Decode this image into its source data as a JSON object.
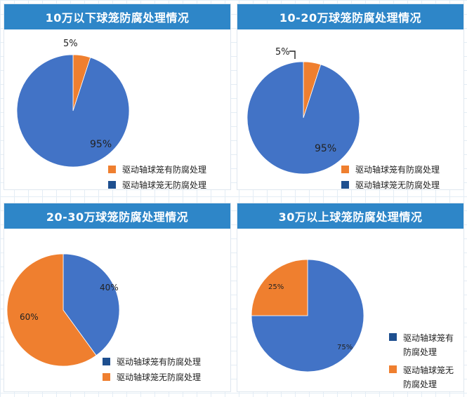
{
  "colors": {
    "orange": "#ef7f2f",
    "blue": "#4273c6",
    "header": "#2e86c8",
    "dark_blue": "#1e4f8f"
  },
  "chart_data": [
    {
      "type": "pie",
      "title": "10万以下球笼防腐处理情况",
      "slices": [
        {
          "label": "驱动轴球笼有防腐处理",
          "value": 5,
          "display": "5%",
          "color": "#ef7f2f"
        },
        {
          "label": "驱动轴球笼无防腐处理",
          "value": 95,
          "display": "95%",
          "color": "#4273c6"
        }
      ],
      "legend": [
        {
          "label": "驱动轴球笼有防腐处理",
          "color": "#ef7f2f"
        },
        {
          "label": "驱动轴球笼无防腐处理",
          "color": "#1e4f8f"
        }
      ],
      "legend_position": "bottom-right"
    },
    {
      "type": "pie",
      "title": "10-20万球笼防腐处理情况",
      "slices": [
        {
          "label": "驱动轴球笼有防腐处理",
          "value": 5,
          "display": "5%",
          "color": "#ef7f2f"
        },
        {
          "label": "驱动轴球笼无防腐处理",
          "value": 95,
          "display": "95%",
          "color": "#4273c6"
        }
      ],
      "legend": [
        {
          "label": "驱动轴球笼有防腐处理",
          "color": "#ef7f2f"
        },
        {
          "label": "驱动轴球笼无防腐处理",
          "color": "#1e4f8f"
        }
      ],
      "legend_position": "bottom-right"
    },
    {
      "type": "pie",
      "title": "20-30万球笼防腐处理情况",
      "slices": [
        {
          "label": "驱动轴球笼有防腐处理",
          "value": 40,
          "display": "40%",
          "color": "#4273c6"
        },
        {
          "label": "驱动轴球笼无防腐处理",
          "value": 60,
          "display": "60%",
          "color": "#ef7f2f"
        }
      ],
      "legend": [
        {
          "label": "驱动轴球笼有防腐处理",
          "color": "#1e4f8f"
        },
        {
          "label": "驱动轴球笼无防腐处理",
          "color": "#ef7f2f"
        }
      ],
      "legend_position": "bottom-right"
    },
    {
      "type": "pie",
      "title": "30万以上球笼防腐处理情况",
      "slices": [
        {
          "label": "驱动轴球笼有防腐处理",
          "value": 75,
          "display": "75%",
          "color": "#4273c6"
        },
        {
          "label": "驱动轴球笼无防腐处理",
          "value": 25,
          "display": "25%",
          "color": "#ef7f2f"
        }
      ],
      "legend": [
        {
          "label": "驱动轴球笼有防腐处理",
          "color": "#1e4f8f"
        },
        {
          "label": "驱动轴球笼无防腐处理",
          "color": "#ef7f2f"
        }
      ],
      "legend_position": "right"
    }
  ]
}
